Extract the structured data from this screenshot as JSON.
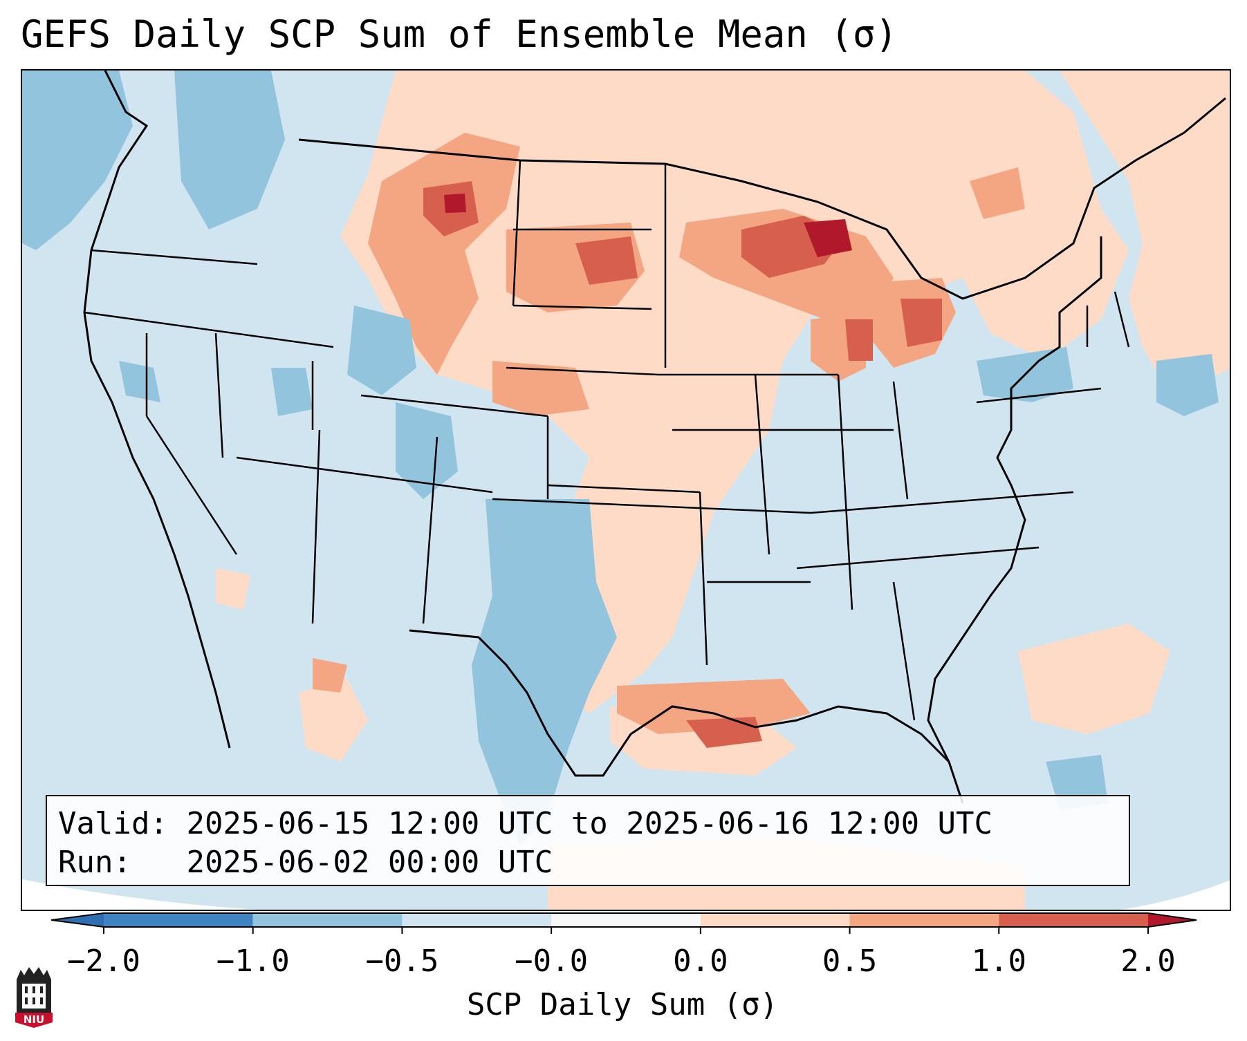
{
  "title": "GEFS Daily SCP Sum of Ensemble Mean (σ)",
  "info": {
    "valid_label": "Valid:",
    "valid_value": "2025-06-15 12:00 UTC to 2025-06-16 12:00 UTC",
    "run_label": "Run:",
    "run_value": "2025-06-02 00:00 UTC"
  },
  "colorbar": {
    "label": "SCP Daily Sum (σ)",
    "ticks": [
      "−2.0",
      "−1.0",
      "−0.5",
      "−0.0",
      "0.0",
      "0.5",
      "1.0",
      "2.0"
    ],
    "bins": [
      {
        "range": "< -2.0",
        "color": "#2f6eb3"
      },
      {
        "range": "-2.0 to -1.0",
        "color": "#3f84c0"
      },
      {
        "range": "-1.0 to -0.5",
        "color": "#92c4de"
      },
      {
        "range": "-0.5 to -0.0",
        "color": "#d1e5f0"
      },
      {
        "range": "-0.0 to 0.0",
        "color": "#f7f7f7"
      },
      {
        "range": "0.0 to 0.5",
        "color": "#fddbc7"
      },
      {
        "range": "0.5 to 1.0",
        "color": "#f4a582"
      },
      {
        "range": "1.0 to 2.0",
        "color": "#d6604d"
      },
      {
        "range": "> 2.0",
        "color": "#b2182b"
      }
    ]
  },
  "logo": {
    "text": "NIU",
    "icon": "niu-tower-icon"
  },
  "map": {
    "description_regions": [
      "northern plains",
      "upper great lakes",
      "gulf coast",
      "texas",
      "pacific northwest",
      "southwest",
      "atlantic"
    ]
  }
}
